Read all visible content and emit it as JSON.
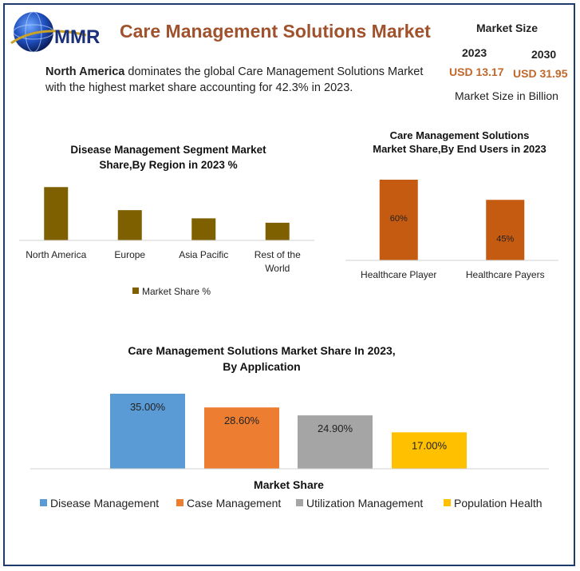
{
  "header": {
    "logo_text": "MMR",
    "title": "Care Management Solutions Market",
    "intro_bold": "North America",
    "intro_rest": " dominates the global Care Management Solutions Market with the highest market share accounting for 42.3% in 2023."
  },
  "market_size": {
    "title": "Market Size",
    "year1": "2023",
    "year2": "2030",
    "value1": "USD 13.17",
    "value2": "USD 31.95",
    "unit": "Market Size in Billion"
  },
  "colors": {
    "brand_title": "#a0522d",
    "frame": "#1f3b6e",
    "region_bar": "#7f6000",
    "end_user_bar": "#c55a11",
    "app_colors": [
      "#5b9bd5",
      "#ed7d31",
      "#a5a5a5",
      "#ffc000"
    ]
  },
  "chart_data": [
    {
      "type": "bar",
      "title_lines": [
        "Disease Management Segment Market",
        "Share,By Region in 2023 %"
      ],
      "categories": [
        "North America",
        "Europe",
        "Asia Pacific",
        "Rest of the World"
      ],
      "category_lines": [
        [
          "North America"
        ],
        [
          "Europe"
        ],
        [
          "Asia Pacific"
        ],
        [
          "Rest of the",
          "World"
        ]
      ],
      "series": [
        {
          "name": "Market Share %",
          "values": [
            42.3,
            24,
            17.5,
            14
          ]
        }
      ],
      "ylim": [
        0,
        45
      ],
      "legend": "bottom",
      "grid": false
    },
    {
      "type": "bar",
      "title_lines": [
        "Care Management Solutions",
        "Market Share,By End Users in 2023"
      ],
      "categories": [
        "Healthcare Player",
        "Healthcare Payers"
      ],
      "values": [
        60,
        45
      ],
      "data_labels": [
        "60%",
        "45%"
      ],
      "ylim": [
        0,
        60
      ],
      "grid": false
    },
    {
      "type": "bar",
      "title_lines": [
        "Care Management Solutions Market Share In 2023,",
        "By Application"
      ],
      "xlabel": "Market Share",
      "categories": [
        "Disease Management",
        "Case Management",
        "Utilization Management",
        "Population Health"
      ],
      "values": [
        35.0,
        28.6,
        24.9,
        17.0
      ],
      "data_labels": [
        "35.00%",
        "28.60%",
        "24.90%",
        "17.00%"
      ],
      "ylim": [
        0,
        35
      ],
      "legend": "bottom",
      "grid": false
    }
  ]
}
